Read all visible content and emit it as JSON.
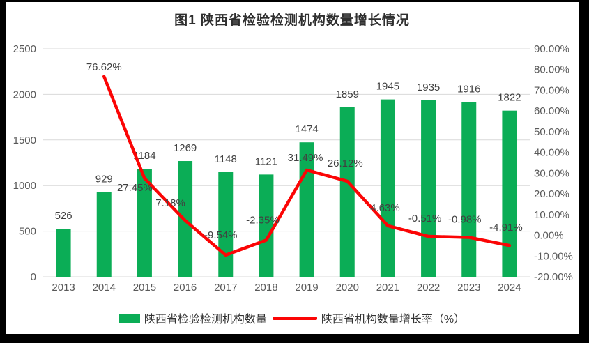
{
  "chart_data": {
    "type": "combo-bar-line",
    "title": "图1 陕西省检验检测机构数量增长情况",
    "categories": [
      "2013",
      "2014",
      "2015",
      "2016",
      "2017",
      "2018",
      "2019",
      "2020",
      "2021",
      "2022",
      "2023",
      "2024"
    ],
    "series": [
      {
        "name": "陕西省检验检测机构数量",
        "type": "bar",
        "axis": "left",
        "color": "#0BAD56",
        "values": [
          526,
          929,
          1184,
          1269,
          1148,
          1121,
          1474,
          1859,
          1945,
          1935,
          1916,
          1822
        ]
      },
      {
        "name": "陕西省机构数量增长率（%）",
        "type": "line",
        "axis": "right",
        "color": "#FB0505",
        "values": [
          null,
          76.62,
          27.45,
          7.18,
          -9.54,
          -2.35,
          31.49,
          26.12,
          4.63,
          -0.51,
          -0.98,
          -4.91
        ],
        "point_labels": [
          "",
          "76.62%",
          "27.45%",
          "7.18%",
          "-9.54%",
          "-2.35%",
          "31.49%",
          "26.12%",
          "4.63%",
          "-0.51%",
          "-0.98%",
          "-4.91%"
        ],
        "label_placement": [
          "",
          "above",
          "below",
          "above",
          "above",
          "above",
          "above",
          "above",
          "above",
          "above",
          "above",
          "above"
        ],
        "label_offsets": [
          [
            0,
            0
          ],
          [
            0,
            -9
          ],
          [
            -14,
            18
          ],
          [
            -21,
            -20
          ],
          [
            -7,
            -24
          ],
          [
            -5,
            -24
          ],
          [
            -2,
            -13
          ],
          [
            -3,
            -21
          ],
          [
            -4,
            -21
          ],
          [
            -5,
            -21
          ],
          [
            -6,
            -21
          ],
          [
            -5,
            -21
          ]
        ]
      }
    ],
    "axes": {
      "left": {
        "min": 0,
        "max": 2500,
        "step": 500,
        "tick_labels": [
          "0",
          "500",
          "1000",
          "1500",
          "2000",
          "2500"
        ]
      },
      "right": {
        "min": -20,
        "max": 90,
        "step": 10,
        "tick_labels": [
          "-20.00%",
          "-10.00%",
          "0.00%",
          "10.00%",
          "20.00%",
          "30.00%",
          "40.00%",
          "50.00%",
          "60.00%",
          "70.00%",
          "80.00%",
          "90.00%"
        ]
      }
    },
    "gridlines": true,
    "legend_position": "bottom",
    "colors": {
      "grid": "#D9D9D9",
      "tick_text": "#595959",
      "data_label_text": "#404040",
      "title_text": "#2F2F2F",
      "background": "#FFFFFF",
      "frame": "#000000"
    }
  }
}
